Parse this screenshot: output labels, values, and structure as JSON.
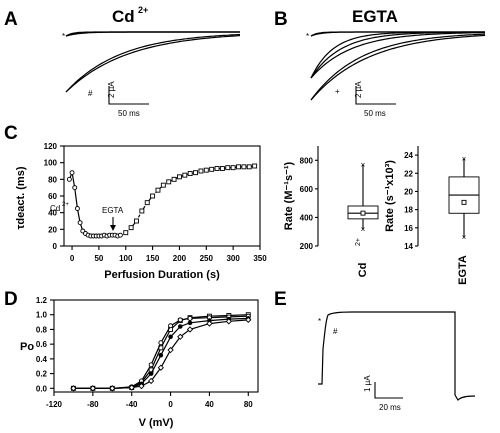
{
  "panels": {
    "A": {
      "letter": "A",
      "title": "Cd",
      "title_sup": "2+",
      "star": "*",
      "hash": "#",
      "scale_y": "2 µA",
      "scale_x": "50 ms"
    },
    "B": {
      "letter": "B",
      "title": "EGTA",
      "star": "*",
      "plus": "+",
      "scale_y": "2 µA",
      "scale_x": "50 ms"
    },
    "C": {
      "letter": "C",
      "ylabel": "τdeact. (ms)",
      "xlabel": "Perfusion Duration (s)",
      "cd_label": "Cd",
      "cd_sup": "2+",
      "egta_label": "EGTA",
      "yticks": [
        "0",
        "20",
        "40",
        "60",
        "80",
        "100",
        "120"
      ],
      "xticks": [
        "0",
        "50",
        "100",
        "150",
        "200",
        "250",
        "300",
        "350"
      ]
    },
    "C_box1": {
      "ylabel": "Rate (M⁻¹s⁻¹)",
      "yticks": [
        "200",
        "400",
        "600",
        "800"
      ],
      "xlabel": "Cd",
      "xlabel_sup": "2+"
    },
    "C_box2": {
      "ylabel": "Rate (s⁻¹x10³)",
      "yticks": [
        "14",
        "16",
        "18",
        "20",
        "22",
        "24"
      ],
      "xlabel": "EGTA"
    },
    "D": {
      "letter": "D",
      "ylabel": "Po",
      "xlabel": "V (mV)",
      "yticks": [
        "0.0",
        "0.2",
        "0.4",
        "0.6",
        "0.8",
        "1.0",
        "1.2"
      ],
      "xticks": [
        "-120",
        "-80",
        "-40",
        "0",
        "40",
        "80"
      ]
    },
    "E": {
      "letter": "E",
      "star": "*",
      "hash": "#",
      "scale_y": "1 µA",
      "scale_x": "20 ms"
    }
  },
  "chart_data": [
    {
      "type": "scatter",
      "panel": "C",
      "xlabel": "Perfusion Duration (s)",
      "ylabel": "τdeact. (ms)",
      "xlim": [
        -15,
        350
      ],
      "ylim": [
        0,
        120
      ],
      "series": [
        {
          "name": "",
          "x": [
            -5,
            0,
            5,
            10,
            15,
            20,
            25,
            30,
            35,
            40,
            45,
            50,
            55,
            60,
            65,
            70,
            75,
            80,
            85,
            90
          ],
          "y": [
            80,
            88,
            70,
            45,
            28,
            18,
            15,
            13,
            12,
            12,
            12,
            12,
            12,
            13,
            12,
            13,
            13,
            13,
            12,
            13
          ]
        },
        {
          "name": "",
          "x": [
            100,
            110,
            120,
            130,
            140,
            150,
            160,
            170,
            180,
            190,
            200,
            210,
            220,
            230,
            240,
            250,
            260,
            270,
            280,
            290,
            300,
            310,
            320,
            330,
            340
          ],
          "y": [
            16,
            22,
            30,
            42,
            52,
            60,
            67,
            73,
            77,
            80,
            83,
            85,
            87,
            88,
            90,
            91,
            92,
            93,
            93,
            94,
            94,
            95,
            95,
            95,
            96
          ]
        }
      ]
    },
    {
      "type": "box",
      "panel": "C_box1",
      "ylabel": "Rate (M⁻¹s⁻¹)",
      "ylim": [
        200,
        900
      ],
      "categories": [
        "Cd2+"
      ],
      "min": 320,
      "q1": 390,
      "median": 430,
      "q3": 480,
      "max": 770,
      "mean": 430
    },
    {
      "type": "box",
      "panel": "C_box2",
      "ylabel": "Rate (s⁻¹x10³)",
      "ylim": [
        14,
        25
      ],
      "categories": [
        "EGTA"
      ],
      "min": 15,
      "q1": 17.6,
      "median": 19.6,
      "q3": 21.6,
      "max": 23.6,
      "mean": 18.8
    },
    {
      "type": "line",
      "panel": "D",
      "xlabel": "V (mV)",
      "ylabel": "Po",
      "xlim": [
        -120,
        90
      ],
      "ylim": [
        -0.05,
        1.2
      ],
      "x": [
        -100,
        -80,
        -60,
        -40,
        -30,
        -20,
        -10,
        0,
        10,
        20,
        40,
        60,
        80
      ],
      "series": [
        {
          "name": "",
          "marker": "square",
          "values": [
            0,
            0,
            0,
            0.01,
            0.08,
            0.25,
            0.55,
            0.8,
            0.92,
            0.96,
            0.98,
            0.99,
            1.0
          ]
        },
        {
          "name": "",
          "marker": "circle",
          "values": [
            0,
            0,
            0,
            0.02,
            0.1,
            0.32,
            0.62,
            0.85,
            0.93,
            0.95,
            0.96,
            0.97,
            0.98
          ]
        },
        {
          "name": "",
          "marker": "filled",
          "values": [
            0,
            0,
            0,
            0.01,
            0.06,
            0.2,
            0.45,
            0.7,
            0.84,
            0.89,
            0.92,
            0.94,
            0.95
          ]
        },
        {
          "name": "",
          "marker": "diamond",
          "values": [
            0,
            0,
            0,
            0.01,
            0.03,
            0.1,
            0.28,
            0.52,
            0.7,
            0.8,
            0.88,
            0.91,
            0.93
          ]
        }
      ]
    }
  ]
}
